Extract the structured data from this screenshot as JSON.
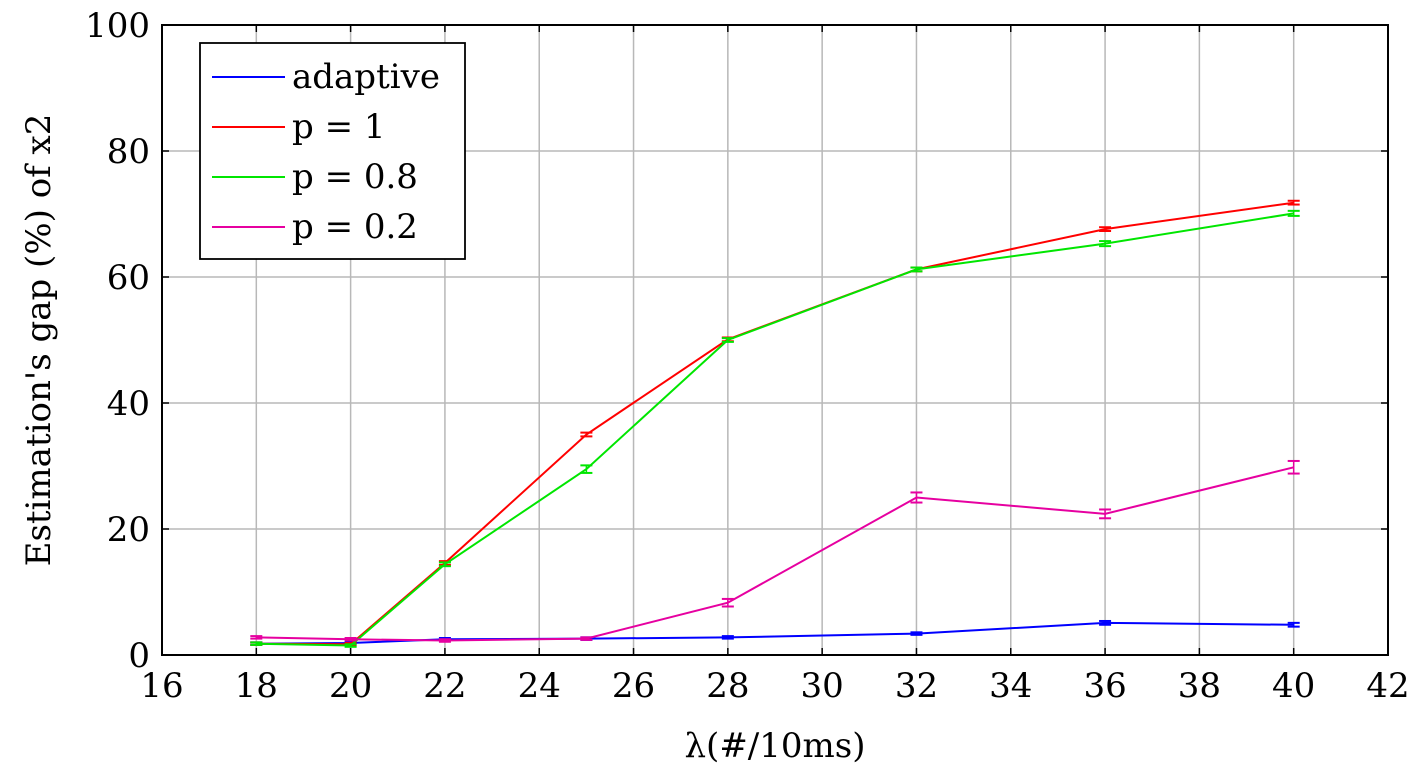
{
  "chart_data": {
    "type": "line",
    "xlabel": "λ(#/10ms)",
    "ylabel": "Estimation's gap (%) of x2",
    "xlim": [
      16,
      42
    ],
    "ylim": [
      0,
      100
    ],
    "xticks": [
      16,
      18,
      20,
      22,
      24,
      26,
      28,
      30,
      32,
      34,
      36,
      38,
      40,
      42
    ],
    "yticks": [
      0,
      20,
      40,
      60,
      80,
      100
    ],
    "grid": true,
    "legend_position": "top-left",
    "x": [
      18,
      20,
      22,
      25,
      28,
      32,
      36,
      40
    ],
    "series": [
      {
        "name": "adaptive",
        "color": "#0000ff",
        "values": [
          1.8,
          1.9,
          2.5,
          2.6,
          2.8,
          3.4,
          5.1,
          4.8
        ],
        "errors": [
          0.2,
          0.2,
          0.2,
          0.2,
          0.2,
          0.2,
          0.3,
          0.3
        ]
      },
      {
        "name": "p = 1",
        "color": "#ff0000",
        "values": [
          1.8,
          1.7,
          14.6,
          35.0,
          50.1,
          61.2,
          67.6,
          71.8
        ],
        "errors": [
          0.2,
          0.2,
          0.3,
          0.3,
          0.3,
          0.3,
          0.3,
          0.3
        ]
      },
      {
        "name": "p = 0.8",
        "color": "#00e600",
        "values": [
          1.8,
          1.5,
          14.4,
          29.5,
          50.0,
          61.2,
          65.3,
          70.1
        ],
        "errors": [
          0.2,
          0.2,
          0.3,
          0.6,
          0.3,
          0.3,
          0.4,
          0.4
        ]
      },
      {
        "name": "p = 0.2",
        "color": "#e600a0",
        "values": [
          2.8,
          2.5,
          2.3,
          2.6,
          8.3,
          25.0,
          22.4,
          29.8
        ],
        "errors": [
          0.2,
          0.2,
          0.2,
          0.2,
          0.6,
          0.8,
          0.7,
          1.0
        ]
      }
    ]
  }
}
